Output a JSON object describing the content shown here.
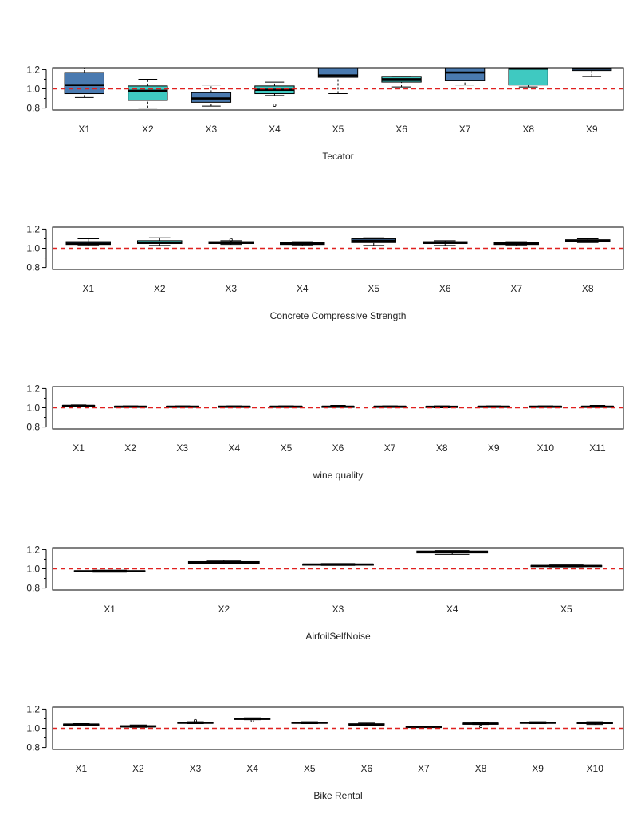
{
  "chart_data": [
    {
      "type": "boxplot",
      "title": "",
      "xlabel": "Tecator",
      "ylim": [
        0.78,
        1.22
      ],
      "yticks": [
        "1.2",
        "1.0",
        "0.8"
      ],
      "ytick_values": [
        1.2,
        1.0,
        0.8
      ],
      "reference_line": 1.0,
      "categories": [
        "X1",
        "X2",
        "X3",
        "X4",
        "X5",
        "X6",
        "X7",
        "X8",
        "X9"
      ],
      "boxes": [
        {
          "whisker_low": 0.91,
          "q1": 0.95,
          "median": 1.04,
          "q3": 1.17,
          "whisker_high": 1.22,
          "fill": "#4a7ab0",
          "outliers": []
        },
        {
          "whisker_low": 0.8,
          "q1": 0.88,
          "median": 0.98,
          "q3": 1.03,
          "whisker_high": 1.1,
          "fill": "#3fc9c1",
          "outliers": []
        },
        {
          "whisker_low": 0.82,
          "q1": 0.86,
          "median": 0.9,
          "q3": 0.96,
          "whisker_high": 1.04,
          "fill": "#4a7ab0",
          "outliers": []
        },
        {
          "whisker_low": 0.93,
          "q1": 0.95,
          "median": 0.99,
          "q3": 1.03,
          "whisker_high": 1.07,
          "fill": "#3fc9c1",
          "outliers": [
            0.83
          ]
        },
        {
          "whisker_low": 0.95,
          "q1": 1.12,
          "median": 1.14,
          "q3": 1.22,
          "whisker_high": 1.22,
          "fill": "#4a7ab0",
          "outliers": []
        },
        {
          "whisker_low": 1.02,
          "q1": 1.07,
          "median": 1.1,
          "q3": 1.13,
          "whisker_high": 1.13,
          "fill": "#3fc9c1",
          "outliers": []
        },
        {
          "whisker_low": 1.04,
          "q1": 1.09,
          "median": 1.17,
          "q3": 1.22,
          "whisker_high": 1.22,
          "fill": "#4a7ab0",
          "outliers": []
        },
        {
          "whisker_low": 1.02,
          "q1": 1.04,
          "median": 1.21,
          "q3": 1.22,
          "whisker_high": 1.22,
          "fill": "#3fc9c1",
          "outliers": []
        },
        {
          "whisker_low": 1.13,
          "q1": 1.19,
          "median": 1.21,
          "q3": 1.22,
          "whisker_high": 1.22,
          "fill": "#4a7ab0",
          "outliers": []
        }
      ]
    },
    {
      "type": "boxplot",
      "title": "",
      "xlabel": "Concrete Compressive Strength",
      "ylim": [
        0.78,
        1.22
      ],
      "yticks": [
        "1.2",
        "1.0",
        "0.8"
      ],
      "ytick_values": [
        1.2,
        1.0,
        0.8
      ],
      "reference_line": 1.0,
      "categories": [
        "X1",
        "X2",
        "X3",
        "X4",
        "X5",
        "X6",
        "X7",
        "X8"
      ],
      "boxes": [
        {
          "whisker_low": 1.03,
          "q1": 1.04,
          "median": 1.05,
          "q3": 1.07,
          "whisker_high": 1.1,
          "fill": "#4a7ab0",
          "outliers": []
        },
        {
          "whisker_low": 1.03,
          "q1": 1.05,
          "median": 1.06,
          "q3": 1.08,
          "whisker_high": 1.11,
          "fill": "#3fc9c1",
          "outliers": []
        },
        {
          "whisker_low": 1.04,
          "q1": 1.05,
          "median": 1.06,
          "q3": 1.07,
          "whisker_high": 1.08,
          "fill": "#4a7ab0",
          "outliers": [
            1.09
          ]
        },
        {
          "whisker_low": 1.03,
          "q1": 1.04,
          "median": 1.05,
          "q3": 1.06,
          "whisker_high": 1.07,
          "fill": "#3fc9c1",
          "outliers": []
        },
        {
          "whisker_low": 1.03,
          "q1": 1.06,
          "median": 1.08,
          "q3": 1.1,
          "whisker_high": 1.11,
          "fill": "#4a7ab0",
          "outliers": []
        },
        {
          "whisker_low": 1.03,
          "q1": 1.05,
          "median": 1.06,
          "q3": 1.07,
          "whisker_high": 1.08,
          "fill": "#3fc9c1",
          "outliers": []
        },
        {
          "whisker_low": 1.03,
          "q1": 1.04,
          "median": 1.05,
          "q3": 1.06,
          "whisker_high": 1.07,
          "fill": "#4a7ab0",
          "outliers": []
        },
        {
          "whisker_low": 1.06,
          "q1": 1.07,
          "median": 1.08,
          "q3": 1.09,
          "whisker_high": 1.1,
          "fill": "#3fc9c1",
          "outliers": []
        }
      ]
    },
    {
      "type": "boxplot",
      "title": "",
      "xlabel": "wine quality",
      "ylim": [
        0.78,
        1.22
      ],
      "yticks": [
        "1.2",
        "1.0",
        "0.8"
      ],
      "ytick_values": [
        1.2,
        1.0,
        0.8
      ],
      "reference_line": 1.0,
      "categories": [
        "X1",
        "X2",
        "X3",
        "X4",
        "X5",
        "X6",
        "X7",
        "X8",
        "X9",
        "X10",
        "X11"
      ],
      "boxes": [
        {
          "whisker_low": 1.01,
          "q1": 1.015,
          "median": 1.02,
          "q3": 1.025,
          "whisker_high": 1.03,
          "fill": "#4a7ab0",
          "outliers": []
        },
        {
          "whisker_low": 1.005,
          "q1": 1.01,
          "median": 1.012,
          "q3": 1.016,
          "whisker_high": 1.02,
          "fill": "#3fc9c1",
          "outliers": []
        },
        {
          "whisker_low": 1.005,
          "q1": 1.01,
          "median": 1.012,
          "q3": 1.016,
          "whisker_high": 1.02,
          "fill": "#4a7ab0",
          "outliers": []
        },
        {
          "whisker_low": 1.005,
          "q1": 1.01,
          "median": 1.012,
          "q3": 1.016,
          "whisker_high": 1.02,
          "fill": "#3fc9c1",
          "outliers": []
        },
        {
          "whisker_low": 1.005,
          "q1": 1.01,
          "median": 1.012,
          "q3": 1.016,
          "whisker_high": 1.02,
          "fill": "#4a7ab0",
          "outliers": []
        },
        {
          "whisker_low": 1.005,
          "q1": 1.01,
          "median": 1.012,
          "q3": 1.016,
          "whisker_high": 1.025,
          "fill": "#3fc9c1",
          "outliers": []
        },
        {
          "whisker_low": 1.005,
          "q1": 1.01,
          "median": 1.012,
          "q3": 1.016,
          "whisker_high": 1.02,
          "fill": "#4a7ab0",
          "outliers": []
        },
        {
          "whisker_low": 1.0,
          "q1": 1.008,
          "median": 1.011,
          "q3": 1.015,
          "whisker_high": 1.02,
          "fill": "#3fc9c1",
          "outliers": []
        },
        {
          "whisker_low": 1.005,
          "q1": 1.01,
          "median": 1.012,
          "q3": 1.016,
          "whisker_high": 1.02,
          "fill": "#4a7ab0",
          "outliers": []
        },
        {
          "whisker_low": 1.005,
          "q1": 1.01,
          "median": 1.012,
          "q3": 1.016,
          "whisker_high": 1.02,
          "fill": "#3fc9c1",
          "outliers": []
        },
        {
          "whisker_low": 1.005,
          "q1": 1.01,
          "median": 1.012,
          "q3": 1.016,
          "whisker_high": 1.025,
          "fill": "#4a7ab0",
          "outliers": []
        }
      ]
    },
    {
      "type": "boxplot",
      "title": "",
      "xlabel": "AirfoilSelfNoise",
      "ylim": [
        0.78,
        1.22
      ],
      "yticks": [
        "1.2",
        "1.0",
        "0.8"
      ],
      "ytick_values": [
        1.2,
        1.0,
        0.8
      ],
      "reference_line": 1.0,
      "categories": [
        "X1",
        "X2",
        "X3",
        "X4",
        "X5"
      ],
      "boxes": [
        {
          "whisker_low": 0.965,
          "q1": 0.97,
          "median": 0.975,
          "q3": 0.98,
          "whisker_high": 0.985,
          "fill": "#4a7ab0",
          "outliers": []
        },
        {
          "whisker_low": 1.05,
          "q1": 1.055,
          "median": 1.065,
          "q3": 1.075,
          "whisker_high": 1.085,
          "fill": "#3fc9c1",
          "outliers": []
        },
        {
          "whisker_low": 1.035,
          "q1": 1.04,
          "median": 1.045,
          "q3": 1.05,
          "whisker_high": 1.055,
          "fill": "#4a7ab0",
          "outliers": []
        },
        {
          "whisker_low": 1.15,
          "q1": 1.165,
          "median": 1.175,
          "q3": 1.185,
          "whisker_high": 1.19,
          "fill": "#3fc9c1",
          "outliers": []
        },
        {
          "whisker_low": 1.02,
          "q1": 1.025,
          "median": 1.03,
          "q3": 1.035,
          "whisker_high": 1.04,
          "fill": "#4a7ab0",
          "outliers": []
        }
      ]
    },
    {
      "type": "boxplot",
      "title": "",
      "xlabel": "Bike Rental",
      "ylim": [
        0.78,
        1.22
      ],
      "yticks": [
        "1.2",
        "1.0",
        "0.8"
      ],
      "ytick_values": [
        1.2,
        1.0,
        0.8
      ],
      "reference_line": 1.0,
      "categories": [
        "X1",
        "X2",
        "X3",
        "X4",
        "X5",
        "X6",
        "X7",
        "X8",
        "X9",
        "X10"
      ],
      "boxes": [
        {
          "whisker_low": 1.03,
          "q1": 1.035,
          "median": 1.04,
          "q3": 1.045,
          "whisker_high": 1.05,
          "fill": "#4a7ab0",
          "outliers": []
        },
        {
          "whisker_low": 1.01,
          "q1": 1.015,
          "median": 1.02,
          "q3": 1.028,
          "whisker_high": 1.035,
          "fill": "#3fc9c1",
          "outliers": []
        },
        {
          "whisker_low": 1.05,
          "q1": 1.055,
          "median": 1.06,
          "q3": 1.065,
          "whisker_high": 1.07,
          "fill": "#4a7ab0",
          "outliers": [
            1.08
          ]
        },
        {
          "whisker_low": 1.09,
          "q1": 1.095,
          "median": 1.1,
          "q3": 1.105,
          "whisker_high": 1.11,
          "fill": "#3fc9c1",
          "outliers": [
            1.08
          ]
        },
        {
          "whisker_low": 1.05,
          "q1": 1.055,
          "median": 1.06,
          "q3": 1.065,
          "whisker_high": 1.07,
          "fill": "#4a7ab0",
          "outliers": []
        },
        {
          "whisker_low": 1.03,
          "q1": 1.035,
          "median": 1.04,
          "q3": 1.048,
          "whisker_high": 1.055,
          "fill": "#3fc9c1",
          "outliers": []
        },
        {
          "whisker_low": 1.01,
          "q1": 1.012,
          "median": 1.015,
          "q3": 1.02,
          "whisker_high": 1.025,
          "fill": "#4a7ab0",
          "outliers": []
        },
        {
          "whisker_low": 1.04,
          "q1": 1.045,
          "median": 1.05,
          "q3": 1.055,
          "whisker_high": 1.06,
          "fill": "#3fc9c1",
          "outliers": [
            1.02
          ]
        },
        {
          "whisker_low": 1.05,
          "q1": 1.055,
          "median": 1.06,
          "q3": 1.065,
          "whisker_high": 1.07,
          "fill": "#4a7ab0",
          "outliers": []
        },
        {
          "whisker_low": 1.04,
          "q1": 1.05,
          "median": 1.058,
          "q3": 1.065,
          "whisker_high": 1.07,
          "fill": "#3fc9c1",
          "outliers": []
        }
      ]
    }
  ]
}
